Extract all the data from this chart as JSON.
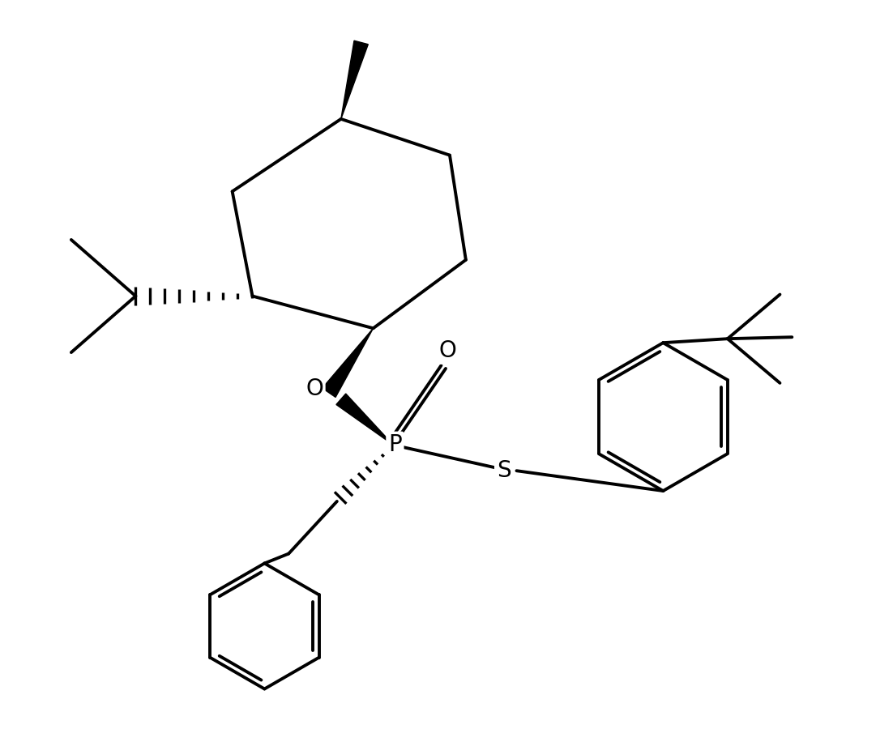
{
  "background_color": "#ffffff",
  "line_color": "#000000",
  "line_width": 2.8,
  "font_size": 20,
  "figsize": [
    11.02,
    9.0
  ],
  "dpi": 100,
  "xlim": [
    0,
    11.02
  ],
  "ylim": [
    0,
    9.0
  ]
}
